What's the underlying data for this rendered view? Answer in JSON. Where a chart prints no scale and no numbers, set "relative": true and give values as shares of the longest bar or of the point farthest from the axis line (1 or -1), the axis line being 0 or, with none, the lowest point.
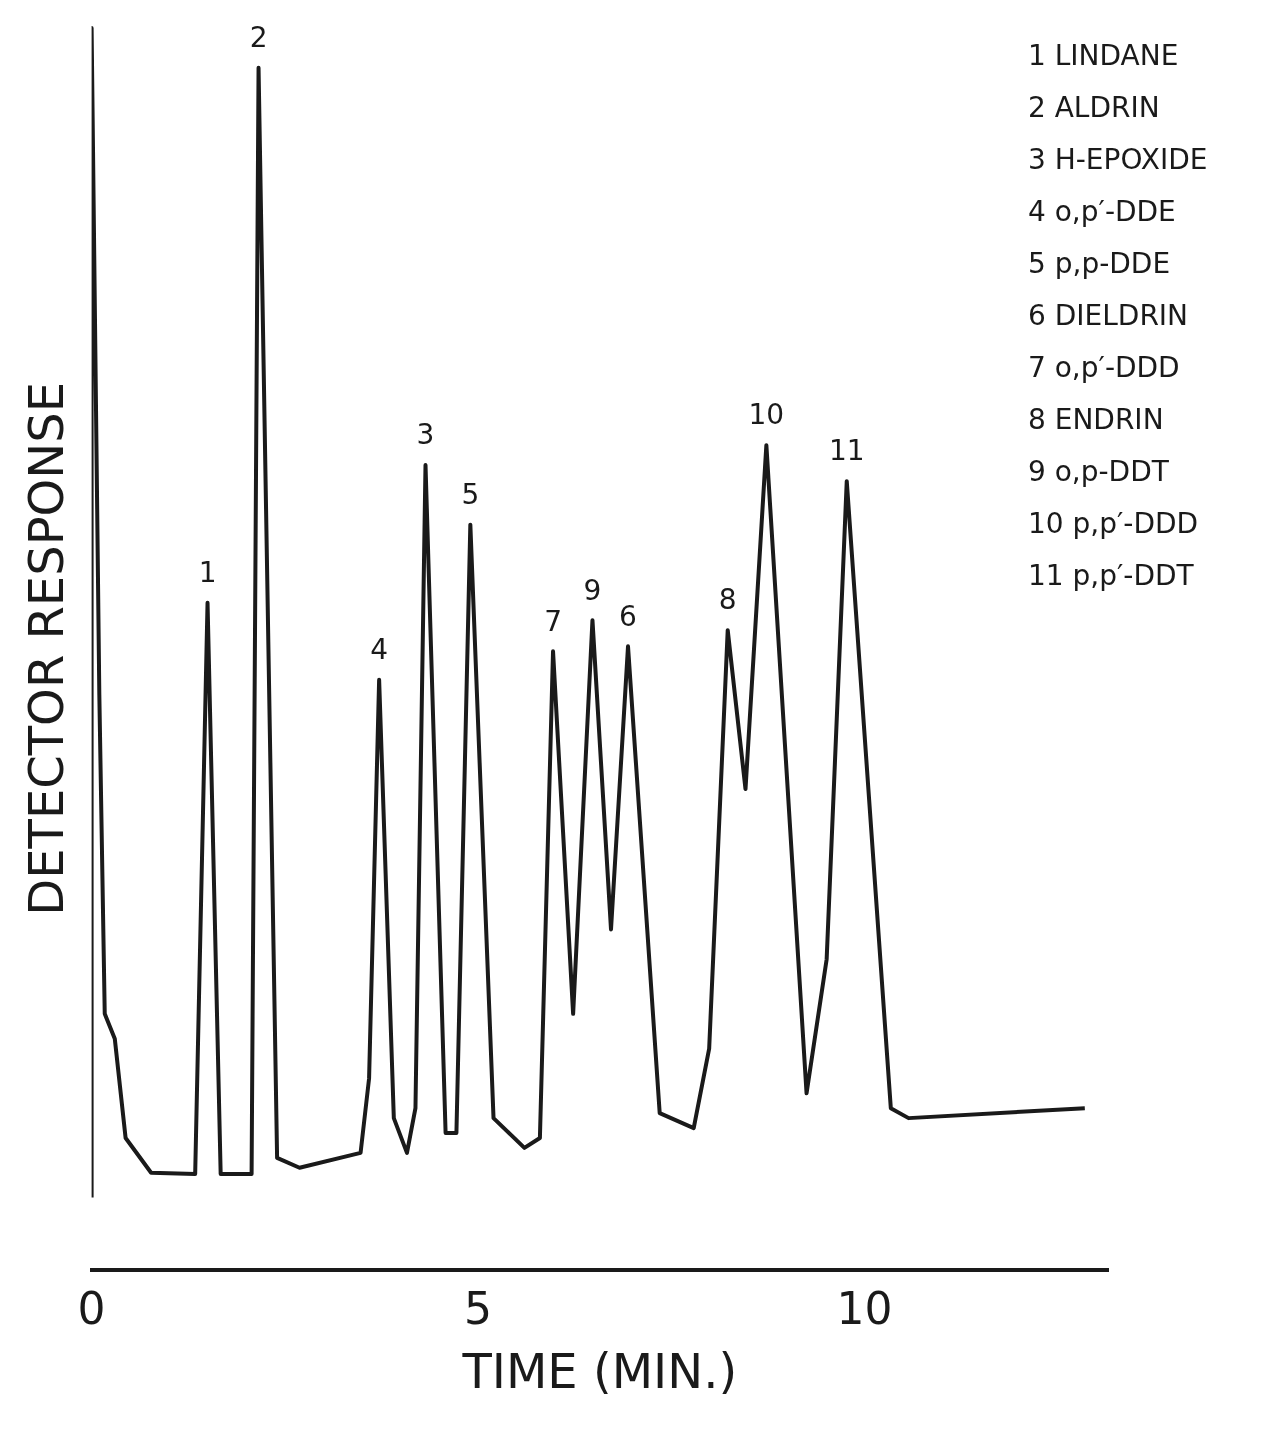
{
  "chart_data": {
    "type": "line",
    "relative": true,
    "xlabel": "TIME (MIN.)",
    "ylabel": "DETECTOR RESPONSE",
    "color": "#1a1a1a",
    "marker": "none",
    "grid": false,
    "legend": false,
    "x": [
      0,
      0,
      0.1,
      0.17,
      0.3,
      0.44,
      0.77,
      1.34,
      1.5,
      1.67,
      2.07,
      2.16,
      2.4,
      2.69,
      3.48,
      3.59,
      3.72,
      3.91,
      4.08,
      4.19,
      4.32,
      4.58,
      4.72,
      4.9,
      5.2,
      5.6,
      5.8,
      5.97,
      6.23,
      6.48,
      6.72,
      6.94,
      7.35,
      7.79,
      7.99,
      8.23,
      8.46,
      8.73,
      9.25,
      9.51,
      9.77,
      10.34,
      10.57,
      12.85
    ],
    "values": [
      0.058,
      1,
      0.463,
      0.206,
      0.186,
      0.106,
      0.078,
      0.077,
      0.537,
      0.077,
      0.077,
      0.968,
      0.09,
      0.082,
      0.094,
      0.154,
      0.475,
      0.122,
      0.094,
      0.13,
      0.648,
      0.11,
      0.11,
      0.6,
      0.122,
      0.098,
      0.106,
      0.498,
      0.206,
      0.523,
      0.274,
      0.502,
      0.126,
      0.114,
      0.178,
      0.515,
      0.387,
      0.664,
      0.142,
      0.25,
      0.635,
      0.13,
      0.122,
      0.13
    ],
    "xlim": [
      0,
      13.15
    ],
    "xticks": [
      0,
      5,
      10
    ],
    "annotations": [
      {
        "text": "1",
        "x": 1.5,
        "y": 0.537
      },
      {
        "text": "2",
        "x": 2.16,
        "y": 0.968
      },
      {
        "text": "3",
        "x": 4.32,
        "y": 0.648
      },
      {
        "text": "4",
        "x": 3.72,
        "y": 0.475
      },
      {
        "text": "5",
        "x": 4.9,
        "y": 0.6
      },
      {
        "text": "6",
        "x": 6.94,
        "y": 0.502
      },
      {
        "text": "7",
        "x": 5.97,
        "y": 0.498
      },
      {
        "text": "8",
        "x": 8.23,
        "y": 0.515
      },
      {
        "text": "9",
        "x": 6.48,
        "y": 0.523
      },
      {
        "text": "10",
        "x": 8.73,
        "y": 0.664
      },
      {
        "text": "11",
        "x": 9.77,
        "y": 0.635
      },
      "1 LINDANE",
      "2 ALDRIN",
      "3 H-EPOXIDE",
      "4 o,p′-DDE",
      "5 p,p-DDE",
      "6 DIELDRIN",
      "7 o,p′-DDD",
      "8 ENDRIN",
      "9 o,p-DDT",
      "10 p,p′-DDD",
      "11 p,p′-DDT"
    ]
  }
}
